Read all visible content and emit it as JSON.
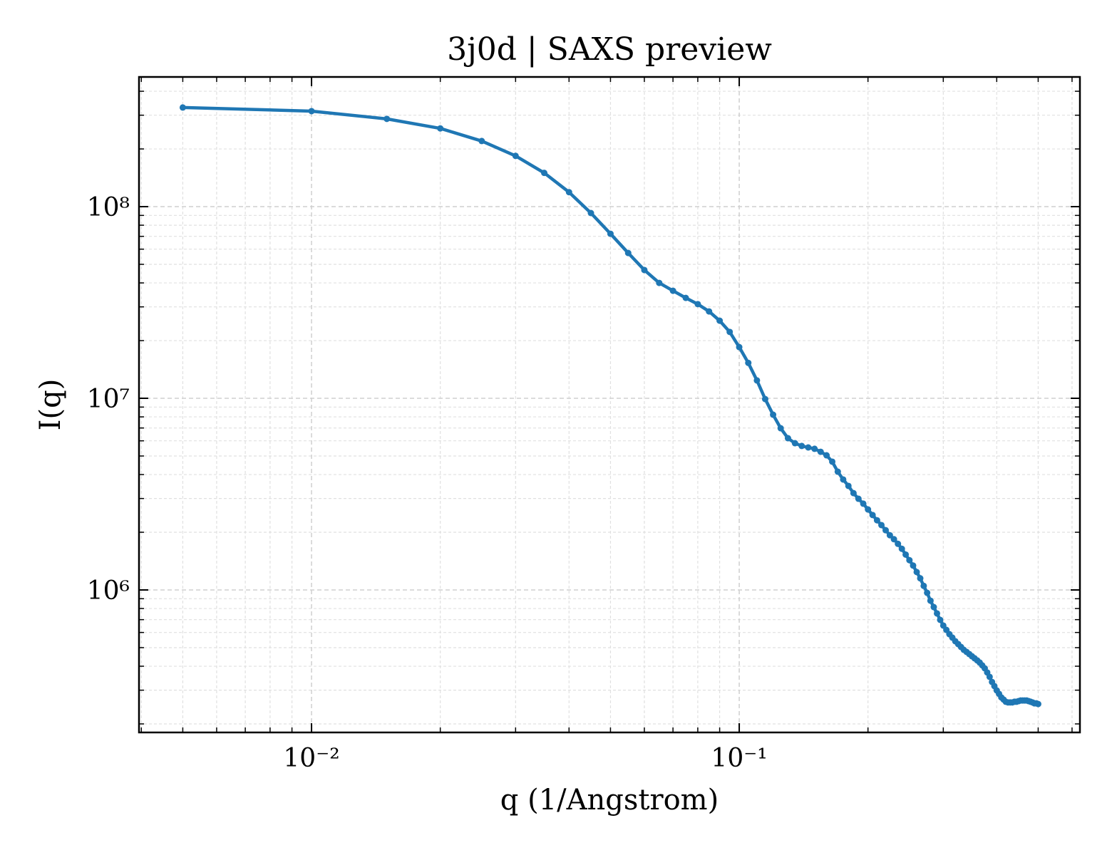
{
  "chart_data": {
    "type": "line",
    "title": "3j0d | SAXS preview",
    "xlabel": "q (1/Angstrom)",
    "ylabel": "I(q)",
    "xscale": "log",
    "yscale": "log",
    "grid": true,
    "markers": true,
    "color": "#1f77b4",
    "xlim": [
      0.00395,
      0.626
    ],
    "ylim": [
      180500,
      475000000
    ],
    "xticks": [
      {
        "value": 0.01,
        "label": "10⁻²"
      },
      {
        "value": 0.1,
        "label": "10⁻¹"
      }
    ],
    "yticks": [
      {
        "value": 1000000,
        "label": "10⁶"
      },
      {
        "value": 10000000,
        "label": "10⁷"
      },
      {
        "value": 100000000,
        "label": "10⁸"
      }
    ],
    "xminorticks": [
      0.004,
      0.005,
      0.006,
      0.007,
      0.008,
      0.009,
      0.02,
      0.03,
      0.04,
      0.05,
      0.06,
      0.07,
      0.08,
      0.09,
      0.2,
      0.3,
      0.4,
      0.5,
      0.6
    ],
    "yminorticks": [
      200000,
      300000,
      400000,
      500000,
      600000,
      700000,
      800000,
      900000,
      2000000,
      3000000,
      4000000,
      5000000,
      6000000,
      7000000,
      8000000,
      9000000,
      20000000,
      30000000,
      40000000,
      50000000,
      60000000,
      70000000,
      80000000,
      90000000,
      200000000,
      300000000,
      400000000
    ],
    "x": [
      0.005,
      0.01,
      0.015,
      0.02,
      0.025,
      0.03,
      0.035,
      0.04,
      0.045,
      0.05,
      0.055,
      0.06,
      0.065,
      0.07,
      0.075,
      0.08,
      0.085,
      0.09,
      0.095,
      0.1,
      0.105,
      0.11,
      0.115,
      0.12,
      0.125,
      0.13,
      0.135,
      0.14,
      0.145,
      0.15,
      0.155,
      0.16,
      0.165,
      0.17,
      0.175,
      0.18,
      0.185,
      0.19,
      0.195,
      0.2,
      0.205,
      0.21,
      0.215,
      0.22,
      0.225,
      0.23,
      0.235,
      0.24,
      0.245,
      0.25,
      0.255,
      0.26,
      0.265,
      0.27,
      0.275,
      0.28,
      0.285,
      0.29,
      0.295,
      0.3,
      0.305,
      0.31,
      0.315,
      0.32,
      0.325,
      0.33,
      0.335,
      0.34,
      0.345,
      0.35,
      0.355,
      0.36,
      0.365,
      0.37,
      0.375,
      0.38,
      0.385,
      0.39,
      0.395,
      0.4,
      0.405,
      0.41,
      0.415,
      0.42,
      0.425,
      0.43,
      0.435,
      0.44,
      0.445,
      0.45,
      0.455,
      0.46,
      0.465,
      0.47,
      0.475,
      0.48,
      0.485,
      0.49,
      0.495,
      0.5
    ],
    "values": [
      329000000,
      315000000,
      287000000,
      256000000,
      220000000,
      184000000,
      150000000,
      119000000,
      92600000,
      72200000,
      57300000,
      46700000,
      40000000,
      36400000,
      33400000,
      31000000,
      28400000,
      25400000,
      22200000,
      18500000,
      15300000,
      12400000,
      9910000,
      8210000,
      6980000,
      6190000,
      5830000,
      5640000,
      5540000,
      5450000,
      5260000,
      5040000,
      4670000,
      4140000,
      3770000,
      3490000,
      3200000,
      2990000,
      2820000,
      2630000,
      2460000,
      2310000,
      2180000,
      2050000,
      1930000,
      1840000,
      1740000,
      1640000,
      1530000,
      1430000,
      1340000,
      1240000,
      1150000,
      1050000,
      966000,
      879000,
      814000,
      754000,
      698000,
      652000,
      619000,
      588000,
      564000,
      540000,
      522000,
      504000,
      487000,
      475000,
      463000,
      451000,
      440000,
      429000,
      418000,
      404000,
      390000,
      371000,
      352000,
      331000,
      315000,
      299000,
      287000,
      275000,
      268000,
      261000,
      259000,
      259000,
      259000,
      261000,
      261000,
      263000,
      265000,
      265000,
      265000,
      265000,
      263000,
      261000,
      259000,
      256000,
      256000,
      254000
    ]
  }
}
